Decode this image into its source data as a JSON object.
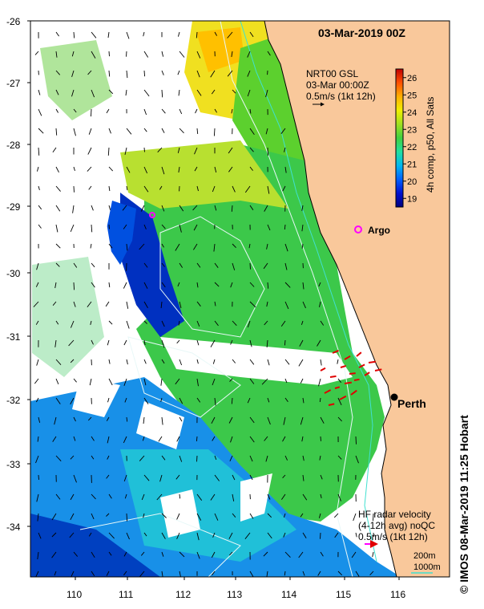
{
  "title": "03-Mar-2019 00Z",
  "product": {
    "line1": "NRT00 GSL",
    "line2": "03-Mar 00:00Z",
    "line3": "0.5m/s (1kt 12h)"
  },
  "colorbar": {
    "label": "4h comp, p50, All Sats",
    "ticks": [
      "19",
      "20",
      "21",
      "22",
      "23",
      "24",
      "25",
      "26"
    ],
    "min": 18.5,
    "max": 26.5,
    "colors": [
      "#00007f",
      "#0010d0",
      "#0060ff",
      "#00b8f0",
      "#20e0a0",
      "#40d040",
      "#a0e020",
      "#f0f000",
      "#ffb000",
      "#ff5000",
      "#c00000"
    ]
  },
  "axes": {
    "y_ticks": [
      "-26",
      "-27",
      "-28",
      "-29",
      "-30",
      "-31",
      "-32",
      "-33",
      "-34"
    ],
    "x_ticks": [
      "110",
      "111",
      "112",
      "113",
      "114",
      "115",
      "116"
    ]
  },
  "places": {
    "argo": "Argo",
    "perth": "Perth"
  },
  "hf_radar": {
    "line1": "HF radar velocity",
    "line2": "(4-12h avg) noQC",
    "line3": "0.5m/s (1kt 12h)"
  },
  "bathymetry": {
    "label1": "200m",
    "label2": "1000m"
  },
  "credit": "© IMOS 08-Mar-2019 11:25 Hobart",
  "colors": {
    "land": "#f9c89b",
    "coast": "#000000",
    "argo": "#ff00ff",
    "hf_arrow": "#e00000"
  }
}
